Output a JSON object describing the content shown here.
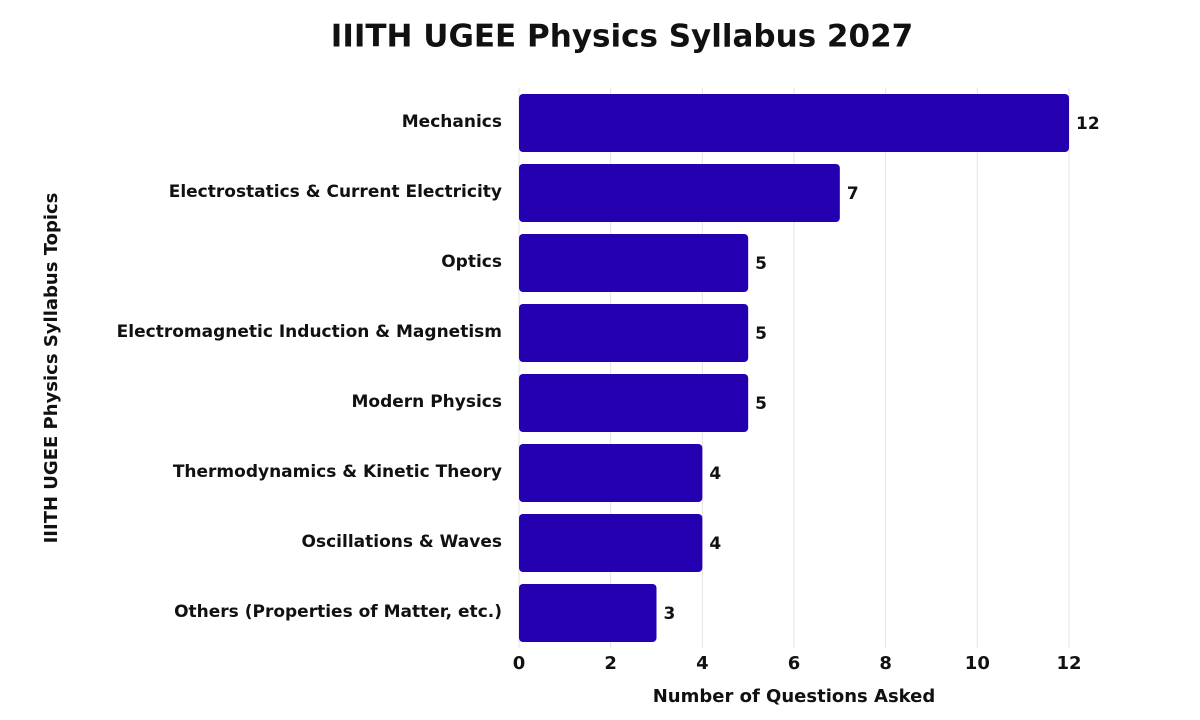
{
  "chart_data": {
    "type": "bar",
    "orientation": "horizontal",
    "title": "IIITH UGEE Physics Syllabus 2027",
    "x_label": "Number of Questions Asked",
    "y_label": "IIITH UGEE Physics Syllabus Topics",
    "categories": [
      "Mechanics",
      "Electrostatics & Current Electricity",
      "Optics",
      "Electromagnetic Induction & Magnetism",
      "Modern Physics",
      "Thermodynamics & Kinetic Theory",
      "Oscillations & Waves",
      "Others (Properties of Matter, etc.)"
    ],
    "values": [
      12,
      7,
      5,
      5,
      5,
      4,
      4,
      3
    ],
    "color": "#2500b0",
    "xlim": [
      0,
      12
    ],
    "xticks": [
      0,
      2,
      4,
      6,
      8,
      10,
      12
    ],
    "grid": true
  }
}
